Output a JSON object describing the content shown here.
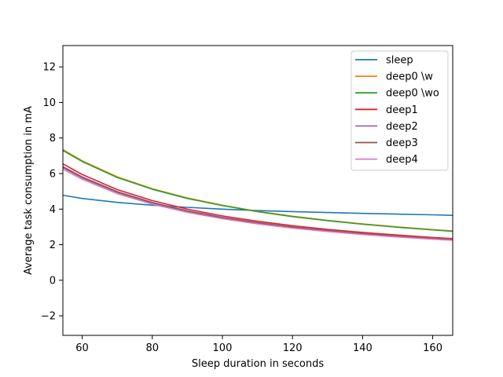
{
  "chart_data": {
    "type": "line",
    "title": "",
    "xlabel": "Sleep duration in seconds",
    "ylabel": "Average task consumption in mA",
    "xlim": [
      54.5,
      165.7
    ],
    "ylim": [
      -3.1,
      13.2
    ],
    "xticks": [
      60,
      80,
      100,
      120,
      140,
      160
    ],
    "yticks": [
      -2,
      0,
      2,
      4,
      6,
      8,
      10,
      12
    ],
    "grid": false,
    "legend_position": "top-right",
    "x": [
      54.5,
      60,
      70,
      80,
      90,
      100,
      110,
      120,
      130,
      140,
      150,
      160,
      165.7
    ],
    "series": [
      {
        "name": "sleep",
        "color": "#1f77b4",
        "values": [
          4.78,
          4.6,
          4.38,
          4.22,
          4.1,
          4.0,
          3.92,
          3.86,
          3.81,
          3.76,
          3.72,
          3.68,
          3.65
        ]
      },
      {
        "name": "deep0 \\w",
        "color": "#ff7f0e",
        "values": [
          7.35,
          6.72,
          5.82,
          5.15,
          4.63,
          4.22,
          3.88,
          3.6,
          3.37,
          3.17,
          3.0,
          2.85,
          2.77
        ]
      },
      {
        "name": "deep0 \\wo",
        "color": "#2ca02c",
        "values": [
          7.3,
          6.68,
          5.78,
          5.12,
          4.6,
          4.2,
          3.86,
          3.58,
          3.35,
          3.15,
          2.98,
          2.83,
          2.75
        ]
      },
      {
        "name": "deep1",
        "color": "#d62728",
        "values": [
          6.55,
          5.95,
          5.1,
          4.48,
          4.0,
          3.62,
          3.32,
          3.07,
          2.86,
          2.69,
          2.54,
          2.41,
          2.34
        ]
      },
      {
        "name": "deep2",
        "color": "#9467bd",
        "values": [
          6.4,
          5.82,
          4.99,
          4.38,
          3.91,
          3.54,
          3.24,
          3.0,
          2.8,
          2.63,
          2.48,
          2.36,
          2.3
        ]
      },
      {
        "name": "deep3",
        "color": "#8c564b",
        "values": [
          6.35,
          5.77,
          4.95,
          4.35,
          3.88,
          3.51,
          3.22,
          2.98,
          2.78,
          2.61,
          2.47,
          2.34,
          2.28
        ]
      },
      {
        "name": "deep4",
        "color": "#e377c2",
        "values": [
          6.25,
          5.68,
          4.87,
          4.28,
          3.82,
          3.46,
          3.17,
          2.93,
          2.74,
          2.57,
          2.43,
          2.31,
          2.25
        ]
      }
    ]
  }
}
